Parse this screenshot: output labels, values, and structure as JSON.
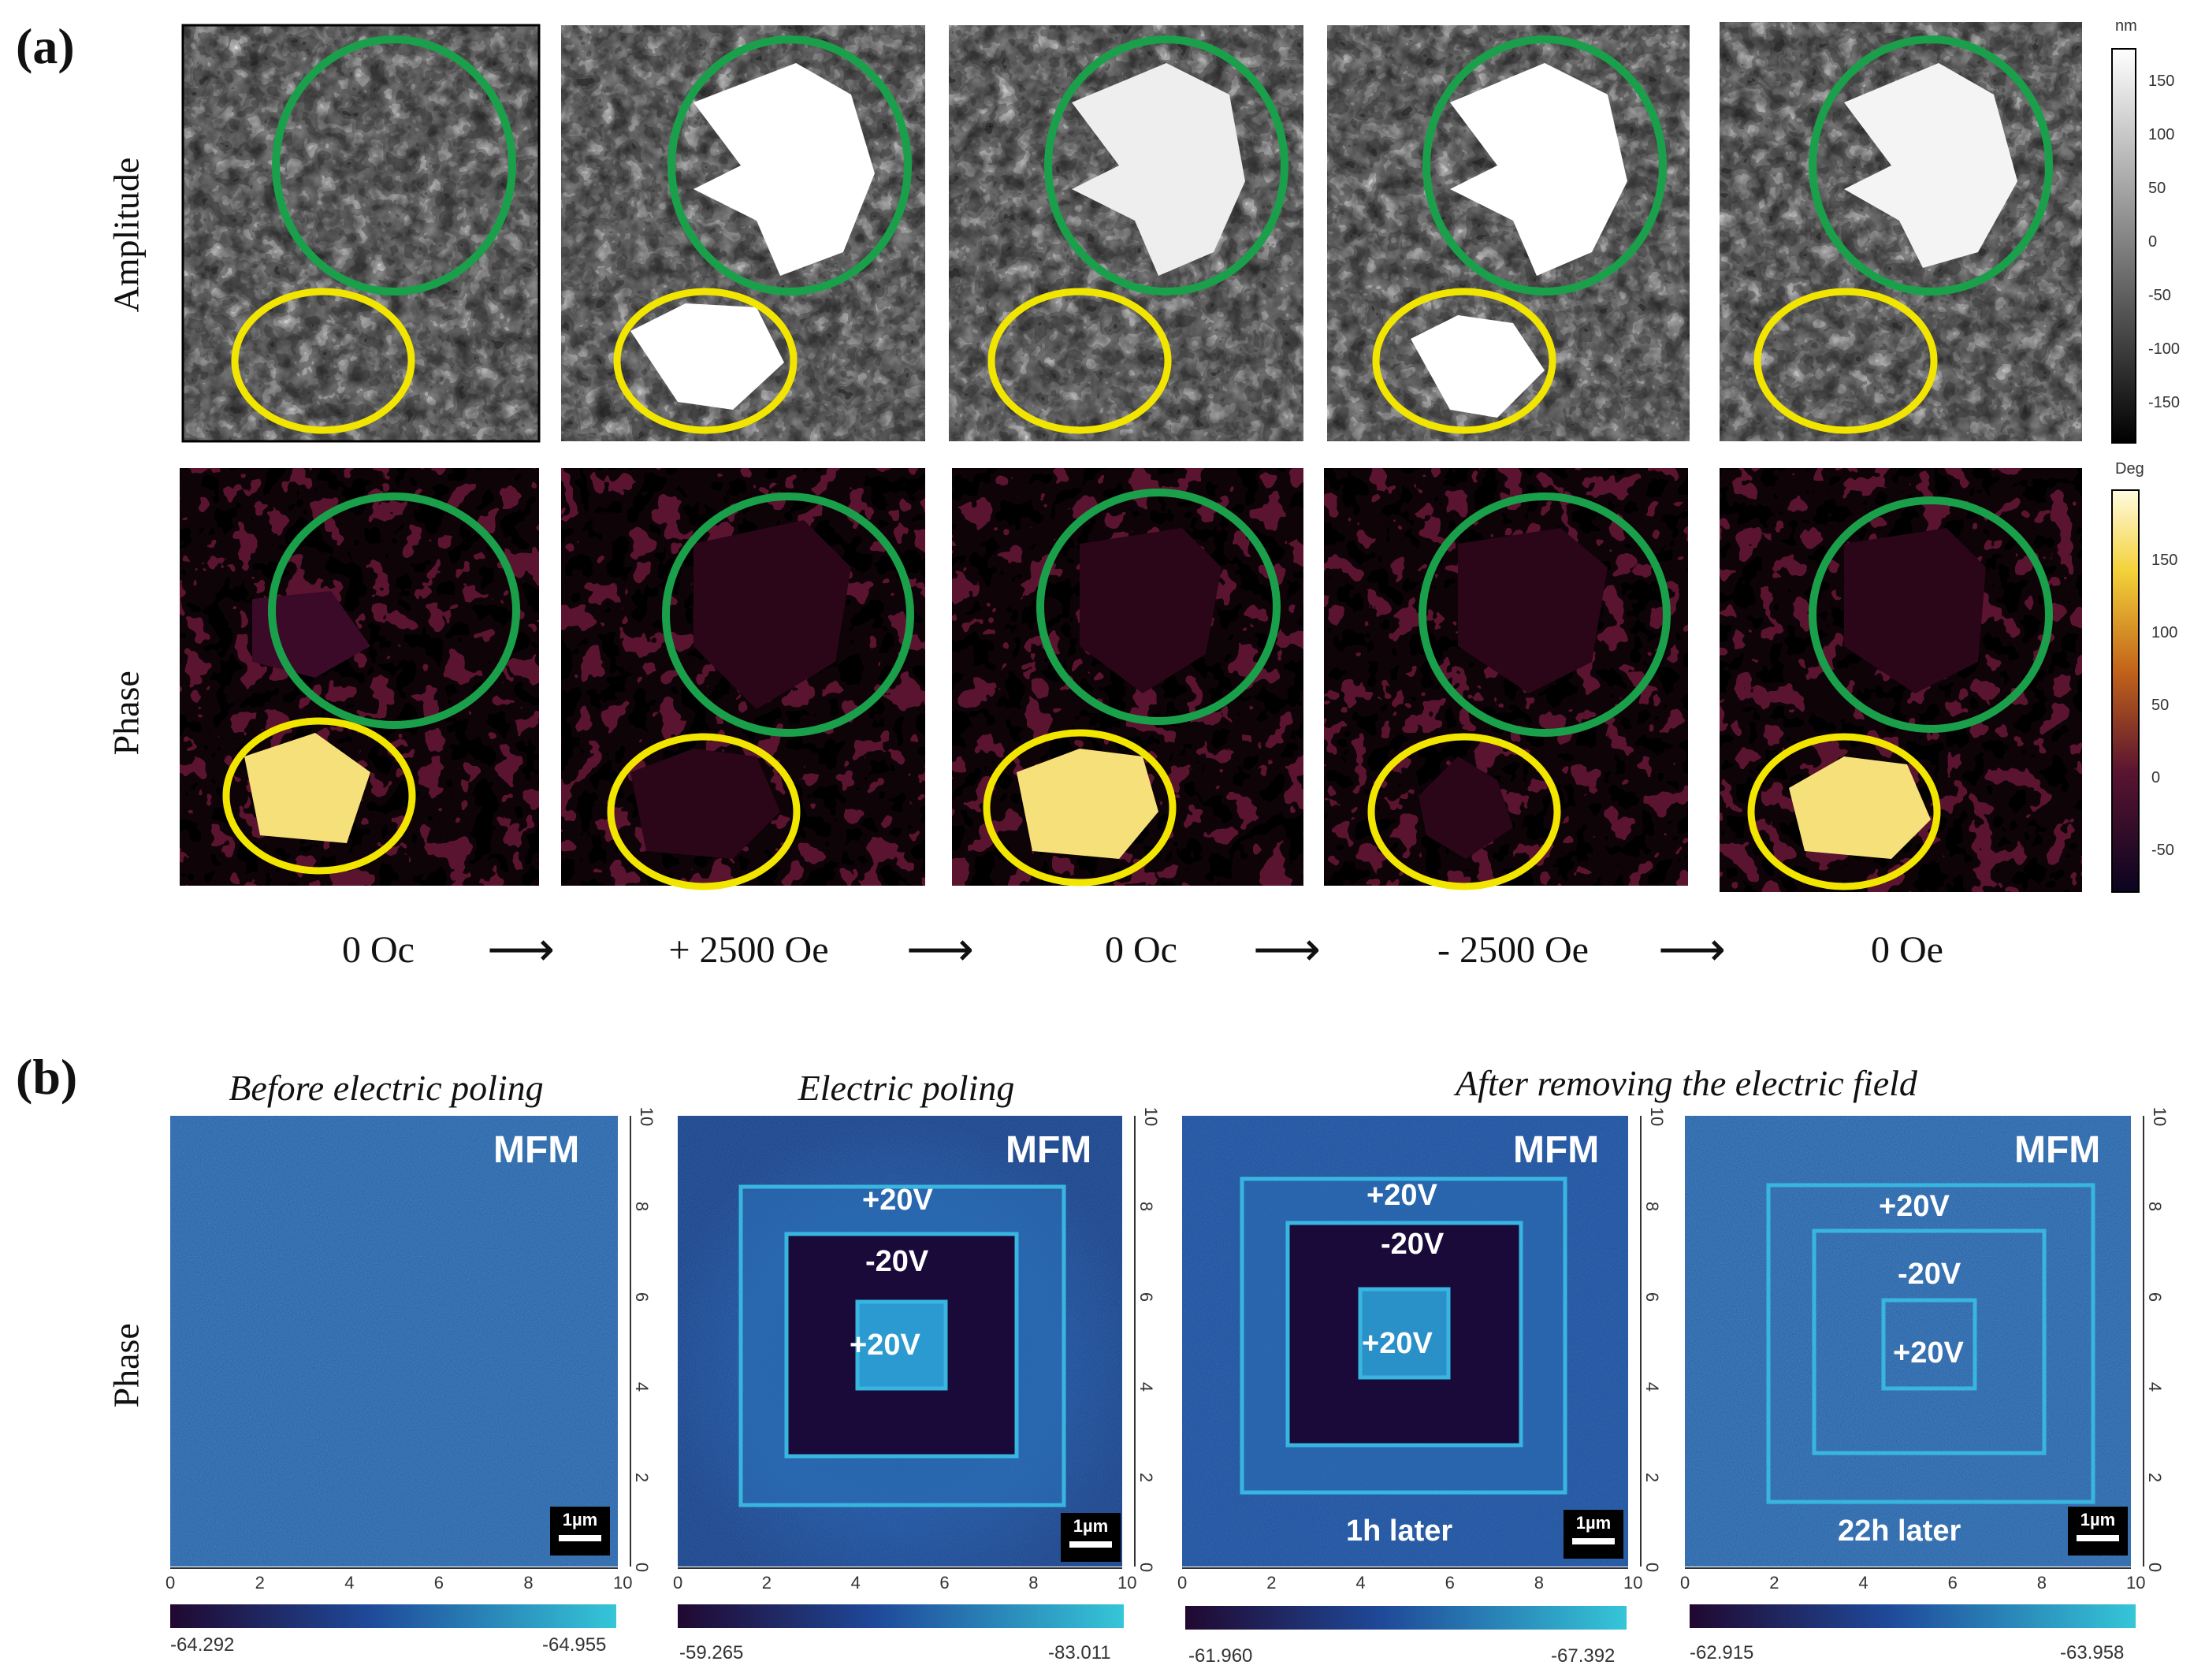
{
  "panel_a": {
    "label": "(a)",
    "rows": {
      "amplitude": "Amplitude",
      "phase": "Phase"
    },
    "fields": [
      "0 Oc",
      "+ 2500 Oe",
      "0 Oc",
      "- 2500 Oe",
      "0 Oe"
    ],
    "amplitude_colorbar": {
      "unit": "nm",
      "ticks": [
        "150",
        "100",
        "50",
        "0",
        "-50",
        "-100",
        "-150"
      ]
    },
    "phase_colorbar": {
      "unit": "Deg",
      "ticks": [
        "150",
        "100",
        "50",
        "0",
        "-50"
      ]
    }
  },
  "panel_b": {
    "label": "(b)",
    "row_label": "Phase",
    "titles": {
      "before": "Before electric poling",
      "poling": "Electric poling",
      "after": "After removing the electric field"
    },
    "tag": "MFM",
    "scalebar": "1µm",
    "axis_ticks": [
      "0",
      "2",
      "4",
      "6",
      "8",
      "10"
    ],
    "voltage": {
      "outer": "+20V",
      "middle": "-20V",
      "inner": "+20V"
    },
    "panels": [
      {
        "scale_min": "-64.292",
        "scale_max": "-64.955",
        "note": ""
      },
      {
        "scale_min": "-59.265",
        "scale_max": "-83.011",
        "note": ""
      },
      {
        "scale_min": "-61.960",
        "scale_max": "-67.392",
        "note": "1h later"
      },
      {
        "scale_min": "-62.915",
        "scale_max": "-63.958",
        "note": "22h later"
      }
    ]
  },
  "colors": {
    "green_circle": "#1aa04a",
    "yellow_circle": "#f2e600",
    "mfm_blue": "#1e5aa0",
    "mfm_box": "#38b6e0"
  }
}
